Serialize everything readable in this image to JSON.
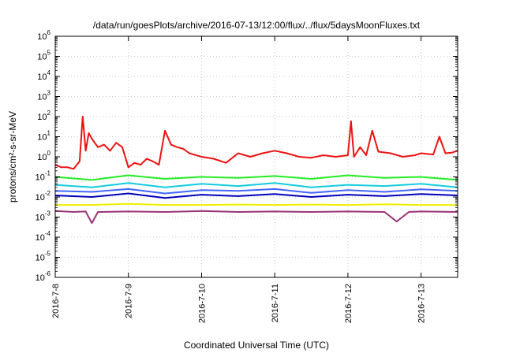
{
  "chart_data": {
    "type": "line",
    "title": "/data/run/goesPlots/archive/2016-07-13/12:00/flux/../flux/5daysMoonFluxes.txt",
    "xlabel": "Coordinated Universal Time (UTC)",
    "ylabel": "protons/cm²-s-sr-MeV",
    "y_scale": "log",
    "ylim": [
      1e-06,
      1000000
    ],
    "xlim": [
      "2016-07-08T00:00",
      "2016-07-13T12:00"
    ],
    "grid": true,
    "x_ticks": [
      {
        "x": "2016-07-08T00:00",
        "label": "2016-7-8"
      },
      {
        "x": "2016-07-09T00:00",
        "label": "2016-7-9"
      },
      {
        "x": "2016-07-10T00:00",
        "label": "2016-7-10"
      },
      {
        "x": "2016-07-11T00:00",
        "label": "2016-7-11"
      },
      {
        "x": "2016-07-12T00:00",
        "label": "2016-7-12"
      },
      {
        "x": "2016-07-13T00:00",
        "label": "2016-7-13"
      }
    ],
    "y_ticks": [
      {
        "value": 1e-06,
        "base": "10",
        "exp": "-6"
      },
      {
        "value": 1e-05,
        "base": "10",
        "exp": "-5"
      },
      {
        "value": 0.0001,
        "base": "10",
        "exp": "-4"
      },
      {
        "value": 0.001,
        "base": "10",
        "exp": "-3"
      },
      {
        "value": 0.01,
        "base": "10",
        "exp": "-2"
      },
      {
        "value": 0.1,
        "base": "10",
        "exp": "-1"
      },
      {
        "value": 1,
        "base": "10",
        "exp": "0"
      },
      {
        "value": 10,
        "base": "10",
        "exp": "1"
      },
      {
        "value": 100,
        "base": "10",
        "exp": "2"
      },
      {
        "value": 1000,
        "base": "10",
        "exp": "3"
      },
      {
        "value": 10000,
        "base": "10",
        "exp": "4"
      },
      {
        "value": 100000,
        "base": "10",
        "exp": "5"
      },
      {
        "value": 1000000,
        "base": "10",
        "exp": "6"
      }
    ],
    "series": [
      {
        "color": "#ee1111",
        "x": [
          "2016-07-08T00:00",
          "2016-07-08T02:00",
          "2016-07-08T04:00",
          "2016-07-08T06:00",
          "2016-07-08T08:00",
          "2016-07-08T09:00",
          "2016-07-08T10:00",
          "2016-07-08T11:00",
          "2016-07-08T12:00",
          "2016-07-08T14:00",
          "2016-07-08T16:00",
          "2016-07-08T18:00",
          "2016-07-08T20:00",
          "2016-07-08T22:00",
          "2016-07-09T00:00",
          "2016-07-09T02:00",
          "2016-07-09T04:00",
          "2016-07-09T06:00",
          "2016-07-09T08:00",
          "2016-07-09T10:00",
          "2016-07-09T12:00",
          "2016-07-09T14:00",
          "2016-07-09T16:00",
          "2016-07-09T18:00",
          "2016-07-09T20:00",
          "2016-07-10T00:00",
          "2016-07-10T04:00",
          "2016-07-10T08:00",
          "2016-07-10T12:00",
          "2016-07-10T16:00",
          "2016-07-10T20:00",
          "2016-07-11T00:00",
          "2016-07-11T04:00",
          "2016-07-11T08:00",
          "2016-07-11T12:00",
          "2016-07-11T16:00",
          "2016-07-11T20:00",
          "2016-07-12T00:00",
          "2016-07-12T01:00",
          "2016-07-12T02:00",
          "2016-07-12T04:00",
          "2016-07-12T06:00",
          "2016-07-12T08:00",
          "2016-07-12T10:00",
          "2016-07-12T14:00",
          "2016-07-12T18:00",
          "2016-07-12T22:00",
          "2016-07-13T00:00",
          "2016-07-13T04:00",
          "2016-07-13T06:00",
          "2016-07-13T08:00",
          "2016-07-13T10:00",
          "2016-07-13T12:00"
        ],
        "y": [
          0.4,
          0.3,
          0.3,
          0.25,
          0.6,
          100,
          2,
          15,
          8,
          3,
          4,
          2,
          5,
          3,
          0.3,
          0.5,
          0.4,
          0.8,
          0.6,
          0.4,
          20,
          4,
          3,
          2.5,
          1.5,
          1,
          0.8,
          0.5,
          1.5,
          1,
          1.5,
          2,
          1.5,
          1,
          0.9,
          1.2,
          1,
          1.2,
          60,
          1,
          3,
          1.2,
          20,
          1.8,
          1.5,
          1,
          1.2,
          1.5,
          1.3,
          10,
          1.5,
          1.6,
          2
        ]
      },
      {
        "color": "#22ee22",
        "x": [
          "2016-07-08T00:00",
          "2016-07-08T12:00",
          "2016-07-09T00:00",
          "2016-07-09T12:00",
          "2016-07-10T00:00",
          "2016-07-10T12:00",
          "2016-07-11T00:00",
          "2016-07-11T12:00",
          "2016-07-12T00:00",
          "2016-07-12T12:00",
          "2016-07-13T00:00",
          "2016-07-13T12:00"
        ],
        "y": [
          0.1,
          0.07,
          0.12,
          0.08,
          0.1,
          0.09,
          0.11,
          0.08,
          0.12,
          0.09,
          0.1,
          0.07
        ]
      },
      {
        "color": "#11ccdd",
        "x": [
          "2016-07-08T00:00",
          "2016-07-08T12:00",
          "2016-07-09T00:00",
          "2016-07-09T12:00",
          "2016-07-10T00:00",
          "2016-07-10T12:00",
          "2016-07-11T00:00",
          "2016-07-11T12:00",
          "2016-07-12T00:00",
          "2016-07-12T12:00",
          "2016-07-13T00:00",
          "2016-07-13T12:00"
        ],
        "y": [
          0.04,
          0.03,
          0.05,
          0.03,
          0.045,
          0.035,
          0.05,
          0.03,
          0.04,
          0.035,
          0.045,
          0.03
        ]
      },
      {
        "color": "#4466ff",
        "x": [
          "2016-07-08T00:00",
          "2016-07-08T12:00",
          "2016-07-09T00:00",
          "2016-07-09T12:00",
          "2016-07-10T00:00",
          "2016-07-10T12:00",
          "2016-07-11T00:00",
          "2016-07-11T12:00",
          "2016-07-12T00:00",
          "2016-07-12T12:00",
          "2016-07-13T00:00",
          "2016-07-13T12:00"
        ],
        "y": [
          0.02,
          0.018,
          0.025,
          0.015,
          0.022,
          0.02,
          0.025,
          0.016,
          0.022,
          0.018,
          0.024,
          0.02
        ]
      },
      {
        "color": "#0000bb",
        "x": [
          "2016-07-08T00:00",
          "2016-07-08T12:00",
          "2016-07-09T00:00",
          "2016-07-09T12:00",
          "2016-07-10T00:00",
          "2016-07-10T12:00",
          "2016-07-11T00:00",
          "2016-07-11T12:00",
          "2016-07-12T00:00",
          "2016-07-12T12:00",
          "2016-07-13T00:00",
          "2016-07-13T12:00"
        ],
        "y": [
          0.012,
          0.01,
          0.015,
          0.009,
          0.013,
          0.011,
          0.014,
          0.01,
          0.013,
          0.011,
          0.014,
          0.012
        ]
      },
      {
        "color": "#eeee00",
        "x": [
          "2016-07-08T00:00",
          "2016-07-08T12:00",
          "2016-07-09T00:00",
          "2016-07-09T12:00",
          "2016-07-10T00:00",
          "2016-07-10T12:00",
          "2016-07-11T00:00",
          "2016-07-11T12:00",
          "2016-07-12T00:00",
          "2016-07-12T12:00",
          "2016-07-13T00:00",
          "2016-07-13T12:00"
        ],
        "y": [
          0.004,
          0.004,
          0.0045,
          0.004,
          0.004,
          0.0042,
          0.004,
          0.0042,
          0.004,
          0.0043,
          0.004,
          0.004
        ]
      },
      {
        "color": "#993377",
        "x": [
          "2016-07-08T00:00",
          "2016-07-08T06:00",
          "2016-07-08T10:00",
          "2016-07-08T12:00",
          "2016-07-08T14:00",
          "2016-07-09T00:00",
          "2016-07-09T12:00",
          "2016-07-10T00:00",
          "2016-07-10T12:00",
          "2016-07-11T00:00",
          "2016-07-11T12:00",
          "2016-07-12T00:00",
          "2016-07-12T12:00",
          "2016-07-12T16:00",
          "2016-07-12T20:00",
          "2016-07-13T00:00",
          "2016-07-13T12:00"
        ],
        "y": [
          0.002,
          0.0018,
          0.0019,
          0.0005,
          0.0018,
          0.0019,
          0.0018,
          0.002,
          0.0018,
          0.0019,
          0.0018,
          0.0019,
          0.0018,
          0.0006,
          0.0018,
          0.0019,
          0.0018
        ]
      }
    ]
  }
}
